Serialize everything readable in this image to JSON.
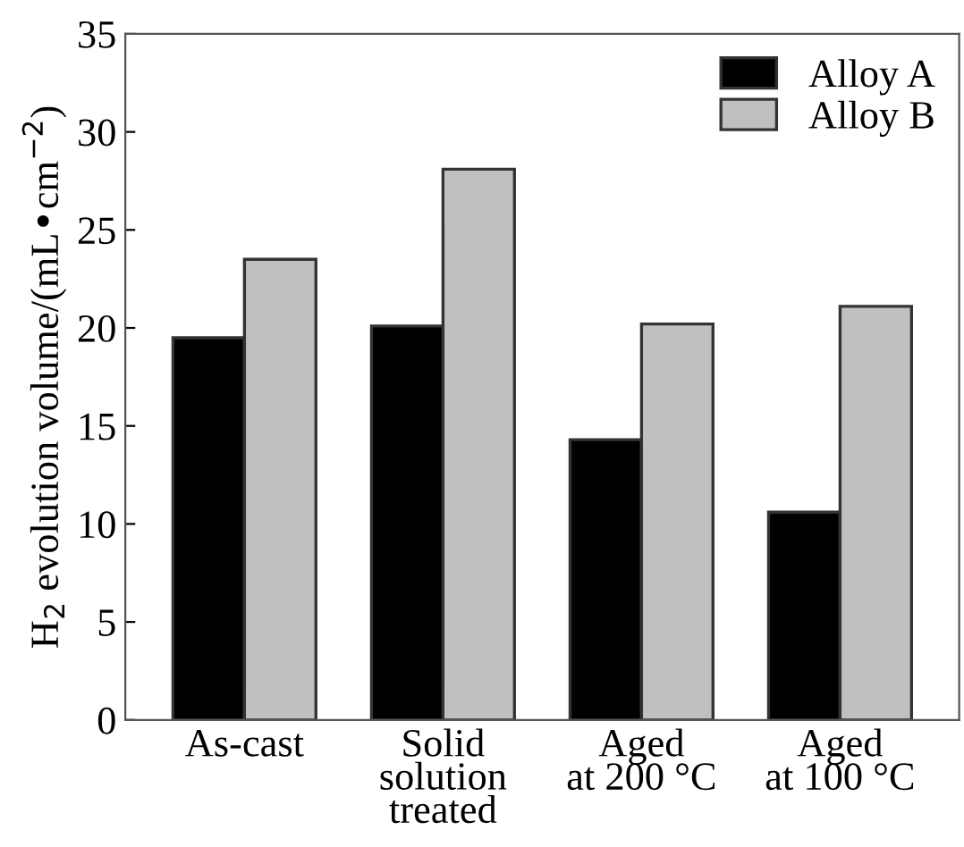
{
  "chart_data": {
    "type": "bar",
    "ylabel": "H$_{2}$ evolution volume/(mL•cm$^{−2}$)",
    "categories": [
      "As-cast",
      "Solid\nsolution\ntreated",
      "Aged\nat 200 °C",
      "Aged\nat 100 °C"
    ],
    "series": [
      {
        "name": "Alloy A",
        "color": "#000000",
        "values": [
          19.5,
          20.1,
          14.3,
          10.6
        ]
      },
      {
        "name": "Alloy B",
        "color": "#c0c0c0",
        "values": [
          23.5,
          28.1,
          20.2,
          21.1
        ]
      }
    ],
    "ylim": [
      0,
      35
    ],
    "yticks": [
      0,
      5,
      10,
      15,
      20,
      25,
      30,
      35
    ],
    "grid": false,
    "legend": "top right"
  }
}
